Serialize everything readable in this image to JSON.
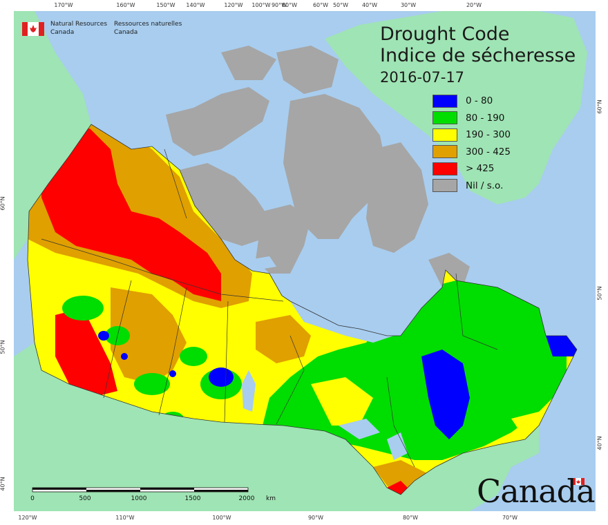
{
  "title": {
    "english": "Drought Code",
    "french": "Indice de sécheresse",
    "date": "2016-07-17"
  },
  "agency": {
    "english_line1": "Natural Resources",
    "english_line2": "Canada",
    "french_line1": "Ressources naturelles",
    "french_line2": "Canada"
  },
  "wordmark": "Canada",
  "legend": [
    {
      "label": "0 - 80",
      "color": "#0000ff"
    },
    {
      "label": "80 - 190",
      "color": "#00dd00"
    },
    {
      "label": "190 - 300",
      "color": "#ffff00"
    },
    {
      "label": "300 - 425",
      "color": "#e0a000"
    },
    {
      "label": "> 425",
      "color": "#ff0000"
    },
    {
      "label": "Nil / s.o.",
      "color": "#a6a6a6"
    }
  ],
  "colors": {
    "ocean": "#a8cdef",
    "land_outside": "#9fe4b4",
    "nodata": "#a6a6a6",
    "boundary": "#333333"
  },
  "scale_bar": {
    "labels": [
      "0",
      "500",
      "1000",
      "1500",
      "2000"
    ],
    "unit": "km"
  },
  "graticule_top": [
    "170°W",
    "160°W",
    "150°W",
    "140°W",
    "120°W",
    "100°W",
    "90°W",
    "80°W",
    "60°W",
    "50°W",
    "40°W",
    "30°W",
    "20°W"
  ],
  "graticule_bottom": [
    "120°W",
    "110°W",
    "100°W",
    "90°W",
    "80°W",
    "70°W"
  ],
  "graticule_left": [
    "60°N",
    "50°N",
    "40°N"
  ],
  "graticule_right": [
    "60°N",
    "50°N",
    "40°N"
  ]
}
